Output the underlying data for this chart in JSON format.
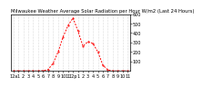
{
  "title": "Milwaukee Weather Average Solar Radiation per Hour W/m2 (Last 24 Hours)",
  "x_labels": [
    "12a",
    "1",
    "2",
    "3",
    "4",
    "5",
    "6",
    "7",
    "8",
    "9",
    "10",
    "11",
    "12p",
    "1",
    "2",
    "3",
    "4",
    "5",
    "6",
    "7",
    "8",
    "9",
    "10",
    "11"
  ],
  "x_values": [
    0,
    1,
    2,
    3,
    4,
    5,
    6,
    7,
    8,
    9,
    10,
    11,
    12,
    13,
    14,
    15,
    16,
    17,
    18,
    19,
    20,
    21,
    22,
    23
  ],
  "y_values": [
    0,
    0,
    0,
    0,
    0,
    0,
    2,
    15,
    80,
    200,
    360,
    480,
    560,
    420,
    260,
    310,
    290,
    200,
    60,
    10,
    0,
    0,
    0,
    0
  ],
  "ylim": [
    0,
    600
  ],
  "y_ticks": [
    100,
    200,
    300,
    400,
    500,
    600
  ],
  "line_color": "#ff0000",
  "bg_color": "#ffffff",
  "plot_bg_color": "#ffffff",
  "grid_color": "#bbbbbb",
  "tick_label_fontsize": 3.5,
  "title_fontsize": 3.8
}
